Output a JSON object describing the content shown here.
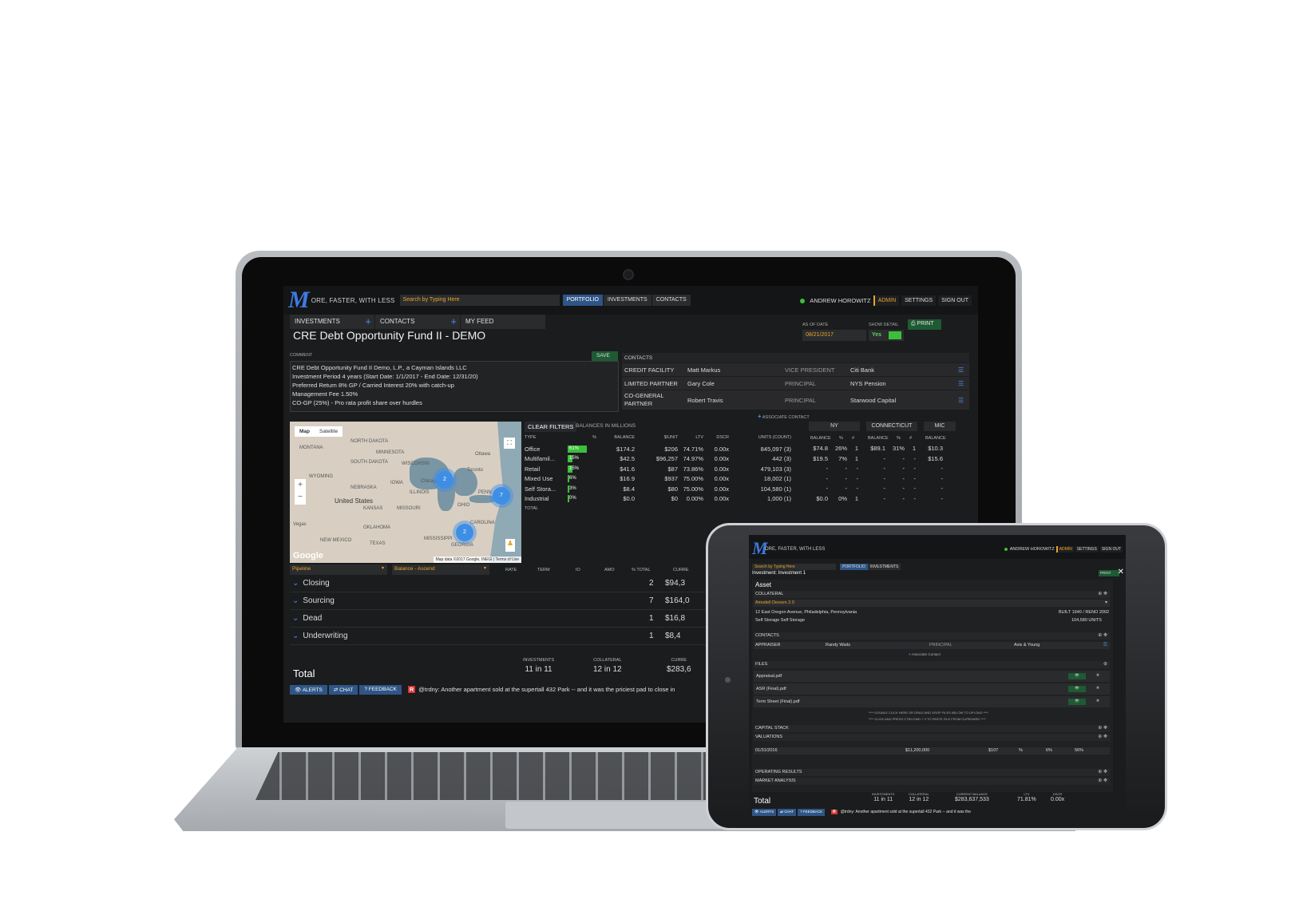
{
  "app": {
    "logo": "M",
    "tagline": "ORE, FASTER, WITH LESS",
    "search_placeholder": "Search by Typing Here"
  },
  "nav": [
    "PORTFOLIO",
    "INVESTMENTS",
    "CONTACTS"
  ],
  "user": {
    "name": "ANDREW HOROWITZ",
    "admin": "ADMIN",
    "settings": "SETTINGS",
    "signout": "SIGN OUT"
  },
  "tabs": [
    "INVESTMENTS",
    "CONTACTS",
    "MY FEED"
  ],
  "page": {
    "title": "CRE Debt Opportunity Fund II - DEMO",
    "asof_label": "AS OF DATE",
    "asof_value": "08/21/2017",
    "show_detail_label": "SHOW DETAIL",
    "show_detail_value": "Yes",
    "print": "PRINT"
  },
  "comment": {
    "label": "COMMENT",
    "save": "SAVE",
    "lines": [
      "CRE Debt Opportunity Fund II Demo, L.P., a Cayman Islands LLC",
      "Investment Period 4 years (Start Date: 1/1/2017 - End Date: 12/31/20)",
      "Preferred Return 8% GP / Carried Interest 20% with catch-up",
      "Management Fee 1.50%",
      "CO-GP  (25%) - Pro rata profit share over hurdles"
    ]
  },
  "contacts": {
    "label": "CONTACTS",
    "associate": "ASSOCIATE CONTACT",
    "rows": [
      {
        "role": "CREDIT FACILITY",
        "name": "Matt Markus",
        "title": "VICE PRESIDENT",
        "org": "Citi Bank"
      },
      {
        "role": "LIMITED PARTNER",
        "name": "Gary Cole",
        "title": "PRINCIPAL",
        "org": "NYS Pension"
      },
      {
        "role": "CO-GENERAL PARTNER",
        "name": "Robert Travis",
        "title": "PRINCIPAL",
        "org": "Starwood Capital"
      }
    ]
  },
  "map": {
    "tab_map": "Map",
    "tab_satellite": "Satellite",
    "labels": [
      "NORTH DAKOTA",
      "MINNESOTA",
      "MONTANA",
      "SOUTH DAKOTA",
      "WISCONSIN",
      "WYOMING",
      "IOWA",
      "NEBRASKA",
      "United States",
      "ILLINOIS",
      "OHIO",
      "KANSAS",
      "MISSOURI",
      "PENN",
      "Ottawa",
      "Toronto",
      "Chicago",
      "Vegas",
      "OKLAHOMA",
      "NEW MEXICO",
      "TEXAS",
      "MISSISSIPPI",
      "GEORGIA",
      "CAROLINA"
    ],
    "clusters": [
      "2",
      "7",
      "2"
    ],
    "google": "Google",
    "attribution": "Map data ©2017 Google, INEGI | Terms of Use"
  },
  "balances": {
    "clear_filters": "CLEAR FILTERS",
    "in_millions": "BALANCES IN MILLIONS",
    "headers": [
      "TYPE",
      "%",
      "BALANCE",
      "$/UNIT",
      "LTV",
      "DSCR",
      "UNITS (COUNT)"
    ],
    "rows": [
      {
        "type": "Office",
        "pct": "61%",
        "pct_val": 61,
        "balance": "$174.2",
        "unit": "$206",
        "ltv": "74.71%",
        "dscr": "0.00x",
        "units": "845,097 (3)"
      },
      {
        "type": "Multifamil...",
        "pct": "15%",
        "pct_val": 15,
        "balance": "$42.5",
        "unit": "$96,257",
        "ltv": "74.97%",
        "dscr": "0.00x",
        "units": "442 (3)"
      },
      {
        "type": "Retail",
        "pct": "15%",
        "pct_val": 15,
        "balance": "$41.6",
        "unit": "$87",
        "ltv": "73.86%",
        "dscr": "0.00x",
        "units": "479,103 (3)"
      },
      {
        "type": "Mixed Use",
        "pct": "6%",
        "pct_val": 6,
        "balance": "$16.9",
        "unit": "$937",
        "ltv": "75.00%",
        "dscr": "0.00x",
        "units": "18,002 (1)"
      },
      {
        "type": "Self Stora...",
        "pct": "3%",
        "pct_val": 3,
        "balance": "$8.4",
        "unit": "$80",
        "ltv": "75.00%",
        "dscr": "0.00x",
        "units": "104,580 (1)"
      },
      {
        "type": "Industrial",
        "pct": "0%",
        "pct_val": 0,
        "balance": "$0.0",
        "unit": "$0",
        "ltv": "0.00%",
        "dscr": "0.00x",
        "units": "1,000 (1)"
      }
    ],
    "total_label": "TOTAL",
    "states": [
      {
        "name": "NY",
        "sub": [
          "BALANCE",
          "%",
          "#"
        ],
        "rows": [
          [
            "$74.8",
            "26%",
            "1"
          ],
          [
            "$19.5",
            "7%",
            "1"
          ],
          [
            "-",
            "-",
            "-"
          ],
          [
            "-",
            "-",
            "-"
          ],
          [
            "-",
            "-",
            "-"
          ],
          [
            "$0.0",
            "0%",
            "1"
          ]
        ]
      },
      {
        "name": "CONNECTICUT",
        "sub": [
          "BALANCE",
          "%",
          "#"
        ],
        "rows": [
          [
            "$89.1",
            "31%",
            "1"
          ],
          [
            "-",
            "-",
            "-"
          ],
          [
            "-",
            "-",
            "-"
          ],
          [
            "-",
            "-",
            "-"
          ],
          [
            "-",
            "-",
            "-"
          ],
          [
            "-",
            "-",
            "-"
          ]
        ]
      },
      {
        "name": "MIC",
        "sub": [
          "BALANCE"
        ],
        "rows": [
          [
            "$10.3"
          ],
          [
            "$15.6"
          ],
          [
            "-"
          ],
          [
            "-"
          ],
          [
            "-"
          ],
          [
            "-"
          ]
        ]
      }
    ]
  },
  "pipeline": {
    "group_select": "Pipeline",
    "sort_select": "Balance - Ascend",
    "headers": [
      "RATE",
      "TERM",
      "IO",
      "AMO",
      "% TOTAL",
      "CURRE"
    ],
    "rows": [
      {
        "name": "Closing",
        "count": "2",
        "amount": "$94,3"
      },
      {
        "name": "Sourcing",
        "count": "7",
        "amount": "$164,0"
      },
      {
        "name": "Dead",
        "count": "1",
        "amount": "$16,8"
      },
      {
        "name": "Underwriting",
        "count": "1",
        "amount": "$8,4"
      }
    ],
    "total": {
      "label": "Total",
      "investments_h": "INVESTMENTS",
      "investments_v": "11 in 11",
      "collateral_h": "COLLATERAL",
      "collateral_v": "12 in 12",
      "current_h": "CURRE",
      "current_v": "$283,6"
    }
  },
  "footer": {
    "alerts": "ALERTS",
    "chat": "CHAT",
    "feedback": "FEEDBACK",
    "ticker": "@trdny: Another apartment sold at the supertall 432 Park -- and it was the priciest pad to close in"
  },
  "tablet": {
    "tagline": "ORE, FASTER, WITH LESS",
    "user": "ANDREW HOROWITZ",
    "admin": "ADMIN",
    "settings": "SETTINGS",
    "signout": "SIGN OUT",
    "search": "Search by Typing Here",
    "nav": [
      "PORTFOLIO",
      "INVESTMENTS"
    ],
    "investment": "Investment: Investment 1",
    "print": "PRINT",
    "asset": "Asset",
    "collateral": "COLLATERAL",
    "collateral_select": "Amsdell Dessen 2.0",
    "address": "12 East Oregon Avenue, Philadelphia, Pennsylvania",
    "built": "BUILT 1940 / RENO 2002",
    "type": "Self Storage Self Storage",
    "units": "104,580 UNITS",
    "contacts": "CONTACTS",
    "appraiser": "APPRAISER",
    "appraiser_name": "Randy Waits",
    "appraiser_title": "PRINCIPAL",
    "appraiser_org": "Avis & Young",
    "associate": "Associate Contact",
    "files": "FILES",
    "file_list": [
      "Appraisal.pdf",
      "ASR (Final).pdf",
      "Term Sheet (Final).pdf"
    ],
    "dnd1": "**** DOUBLE CLICK HERE OR DRAG AND DROP FILES BELOW TO UPLOAD ****",
    "dnd2": "**** CLICK AND PRESS CTRL/CMD + V TO PASTE FILE FROM CLIPBOARD ****",
    "capital_stack": "CAPITAL STACK",
    "valuations": "VALUATIONS",
    "val_date": "01/31/2016",
    "val_amount": "$11,200,000",
    "val_unit": "$107",
    "val_pct": "%",
    "val_cap": "6%",
    "val_occ": "56%",
    "operating": "OPERATING RESULTS",
    "market": "MARKET ANALYSIS",
    "total": {
      "label": "Total",
      "inv_h": "INVESTMENTS",
      "inv_v": "11 in 11",
      "col_h": "COLLATERAL",
      "col_v": "12 in 12",
      "cur_h": "CURRENT BALANCE",
      "cur_v": "$283,637,533",
      "ltv_h": "LTV",
      "ltv_v": "71.81%",
      "dscr_h": "DSCR",
      "dscr_v": "0.00x"
    },
    "footer": {
      "alerts": "ALERTS",
      "chat": "CHAT",
      "feedback": "FEEDBACK",
      "ticker": "@trdny: Another apartment sold at the supertall 432 Park -- and it was the"
    }
  }
}
